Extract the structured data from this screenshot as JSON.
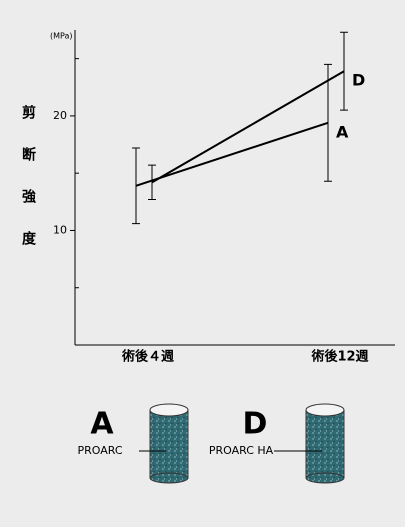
{
  "chart_data": {
    "type": "line",
    "y_unit": "(MPa)",
    "y_label": "剪断強度",
    "categories": [
      "術後４週",
      "術後12週"
    ],
    "series": [
      {
        "name": "A",
        "description": "PROARC",
        "color": "#000000",
        "values": [
          13.9,
          19.4
        ],
        "errors": [
          3.3,
          5.1
        ]
      },
      {
        "name": "D",
        "description": "PROARC HA",
        "color": "#000000",
        "values": [
          14.2,
          23.9
        ],
        "errors": [
          1.5,
          3.4
        ]
      }
    ],
    "ylim": [
      0,
      27.5
    ],
    "yticks": [
      10,
      20
    ],
    "minor_yticks": [
      5,
      15,
      25
    ]
  }
}
